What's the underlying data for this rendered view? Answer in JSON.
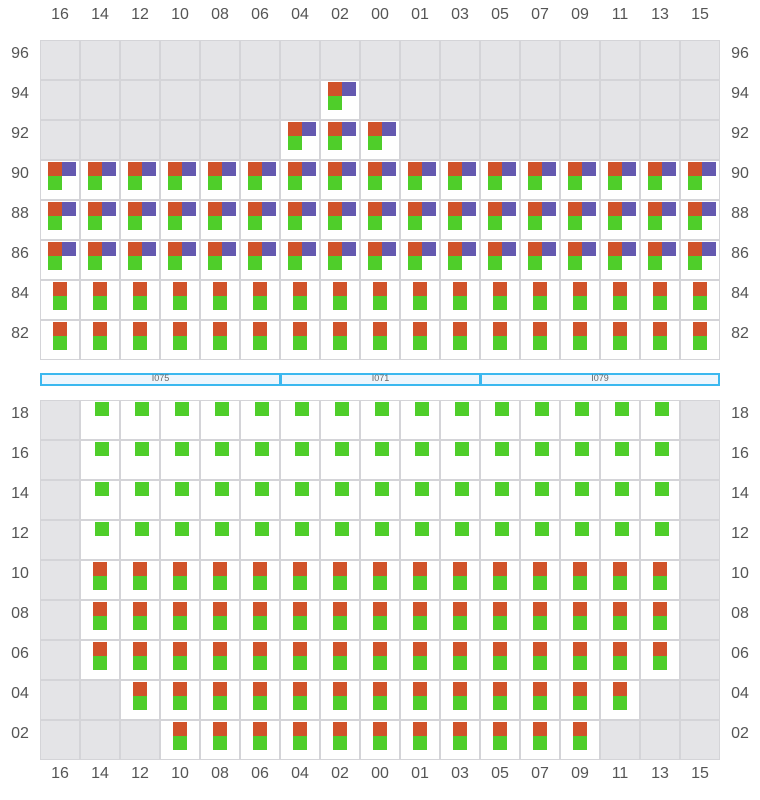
{
  "colors": {
    "orange": "#d0522a",
    "purple": "#6459b0",
    "green": "#4fce2a",
    "empty": "#e4e4e7",
    "bar_border": "#3bb8ef"
  },
  "columns": [
    "16",
    "14",
    "12",
    "10",
    "08",
    "06",
    "04",
    "02",
    "00",
    "01",
    "03",
    "05",
    "07",
    "09",
    "11",
    "13",
    "15"
  ],
  "legend_note": "cell codes: E=empty, OPG=orange+purple+green, OG=orange+green, G=green",
  "top_grid": {
    "rows": [
      {
        "label": "96",
        "cells": "E E E E E E E E E E E E E E E E E"
      },
      {
        "label": "94",
        "cells": "E E E E E E E OPG E E E E E E E E E"
      },
      {
        "label": "92",
        "cells": "E E E E E E OPG OPG OPG E E E E E E E E"
      },
      {
        "label": "90",
        "cells": "OPG OPG OPG OPG OPG OPG OPG OPG OPG OPG OPG OPG OPG OPG OPG OPG OPG"
      },
      {
        "label": "88",
        "cells": "OPG OPG OPG OPG OPG OPG OPG OPG OPG OPG OPG OPG OPG OPG OPG OPG OPG"
      },
      {
        "label": "86",
        "cells": "OPG OPG OPG OPG OPG OPG OPG OPG OPG OPG OPG OPG OPG OPG OPG OPG OPG"
      },
      {
        "label": "84",
        "cells": "OG OG OG OG OG OG OG OG OG OG OG OG OG OG OG OG OG"
      },
      {
        "label": "82",
        "cells": "OG OG OG OG OG OG OG OG OG OG OG OG OG OG OG OG OG"
      }
    ]
  },
  "segments": [
    {
      "label": "I075",
      "span": 6
    },
    {
      "label": "I071",
      "span": 5
    },
    {
      "label": "I079",
      "span": 6
    }
  ],
  "bottom_grid": {
    "rows": [
      {
        "label": "18",
        "cells": "E G G G G G G G G G G G G G G G E"
      },
      {
        "label": "16",
        "cells": "E G G G G G G G G G G G G G G G E"
      },
      {
        "label": "14",
        "cells": "E G G G G G G G G G G G G G G G E"
      },
      {
        "label": "12",
        "cells": "E G G G G G G G G G G G G G G G E"
      },
      {
        "label": "10",
        "cells": "E OG OG OG OG OG OG OG OG OG OG OG OG OG OG OG E"
      },
      {
        "label": "08",
        "cells": "E OG OG OG OG OG OG OG OG OG OG OG OG OG OG OG E"
      },
      {
        "label": "06",
        "cells": "E OG OG OG OG OG OG OG OG OG OG OG OG OG OG OG E"
      },
      {
        "label": "04",
        "cells": "E E OG OG OG OG OG OG OG OG OG OG OG OG OG E E"
      },
      {
        "label": "02",
        "cells": "E E E OG OG OG OG OG OG OG OG OG OG OG E E E"
      }
    ]
  }
}
